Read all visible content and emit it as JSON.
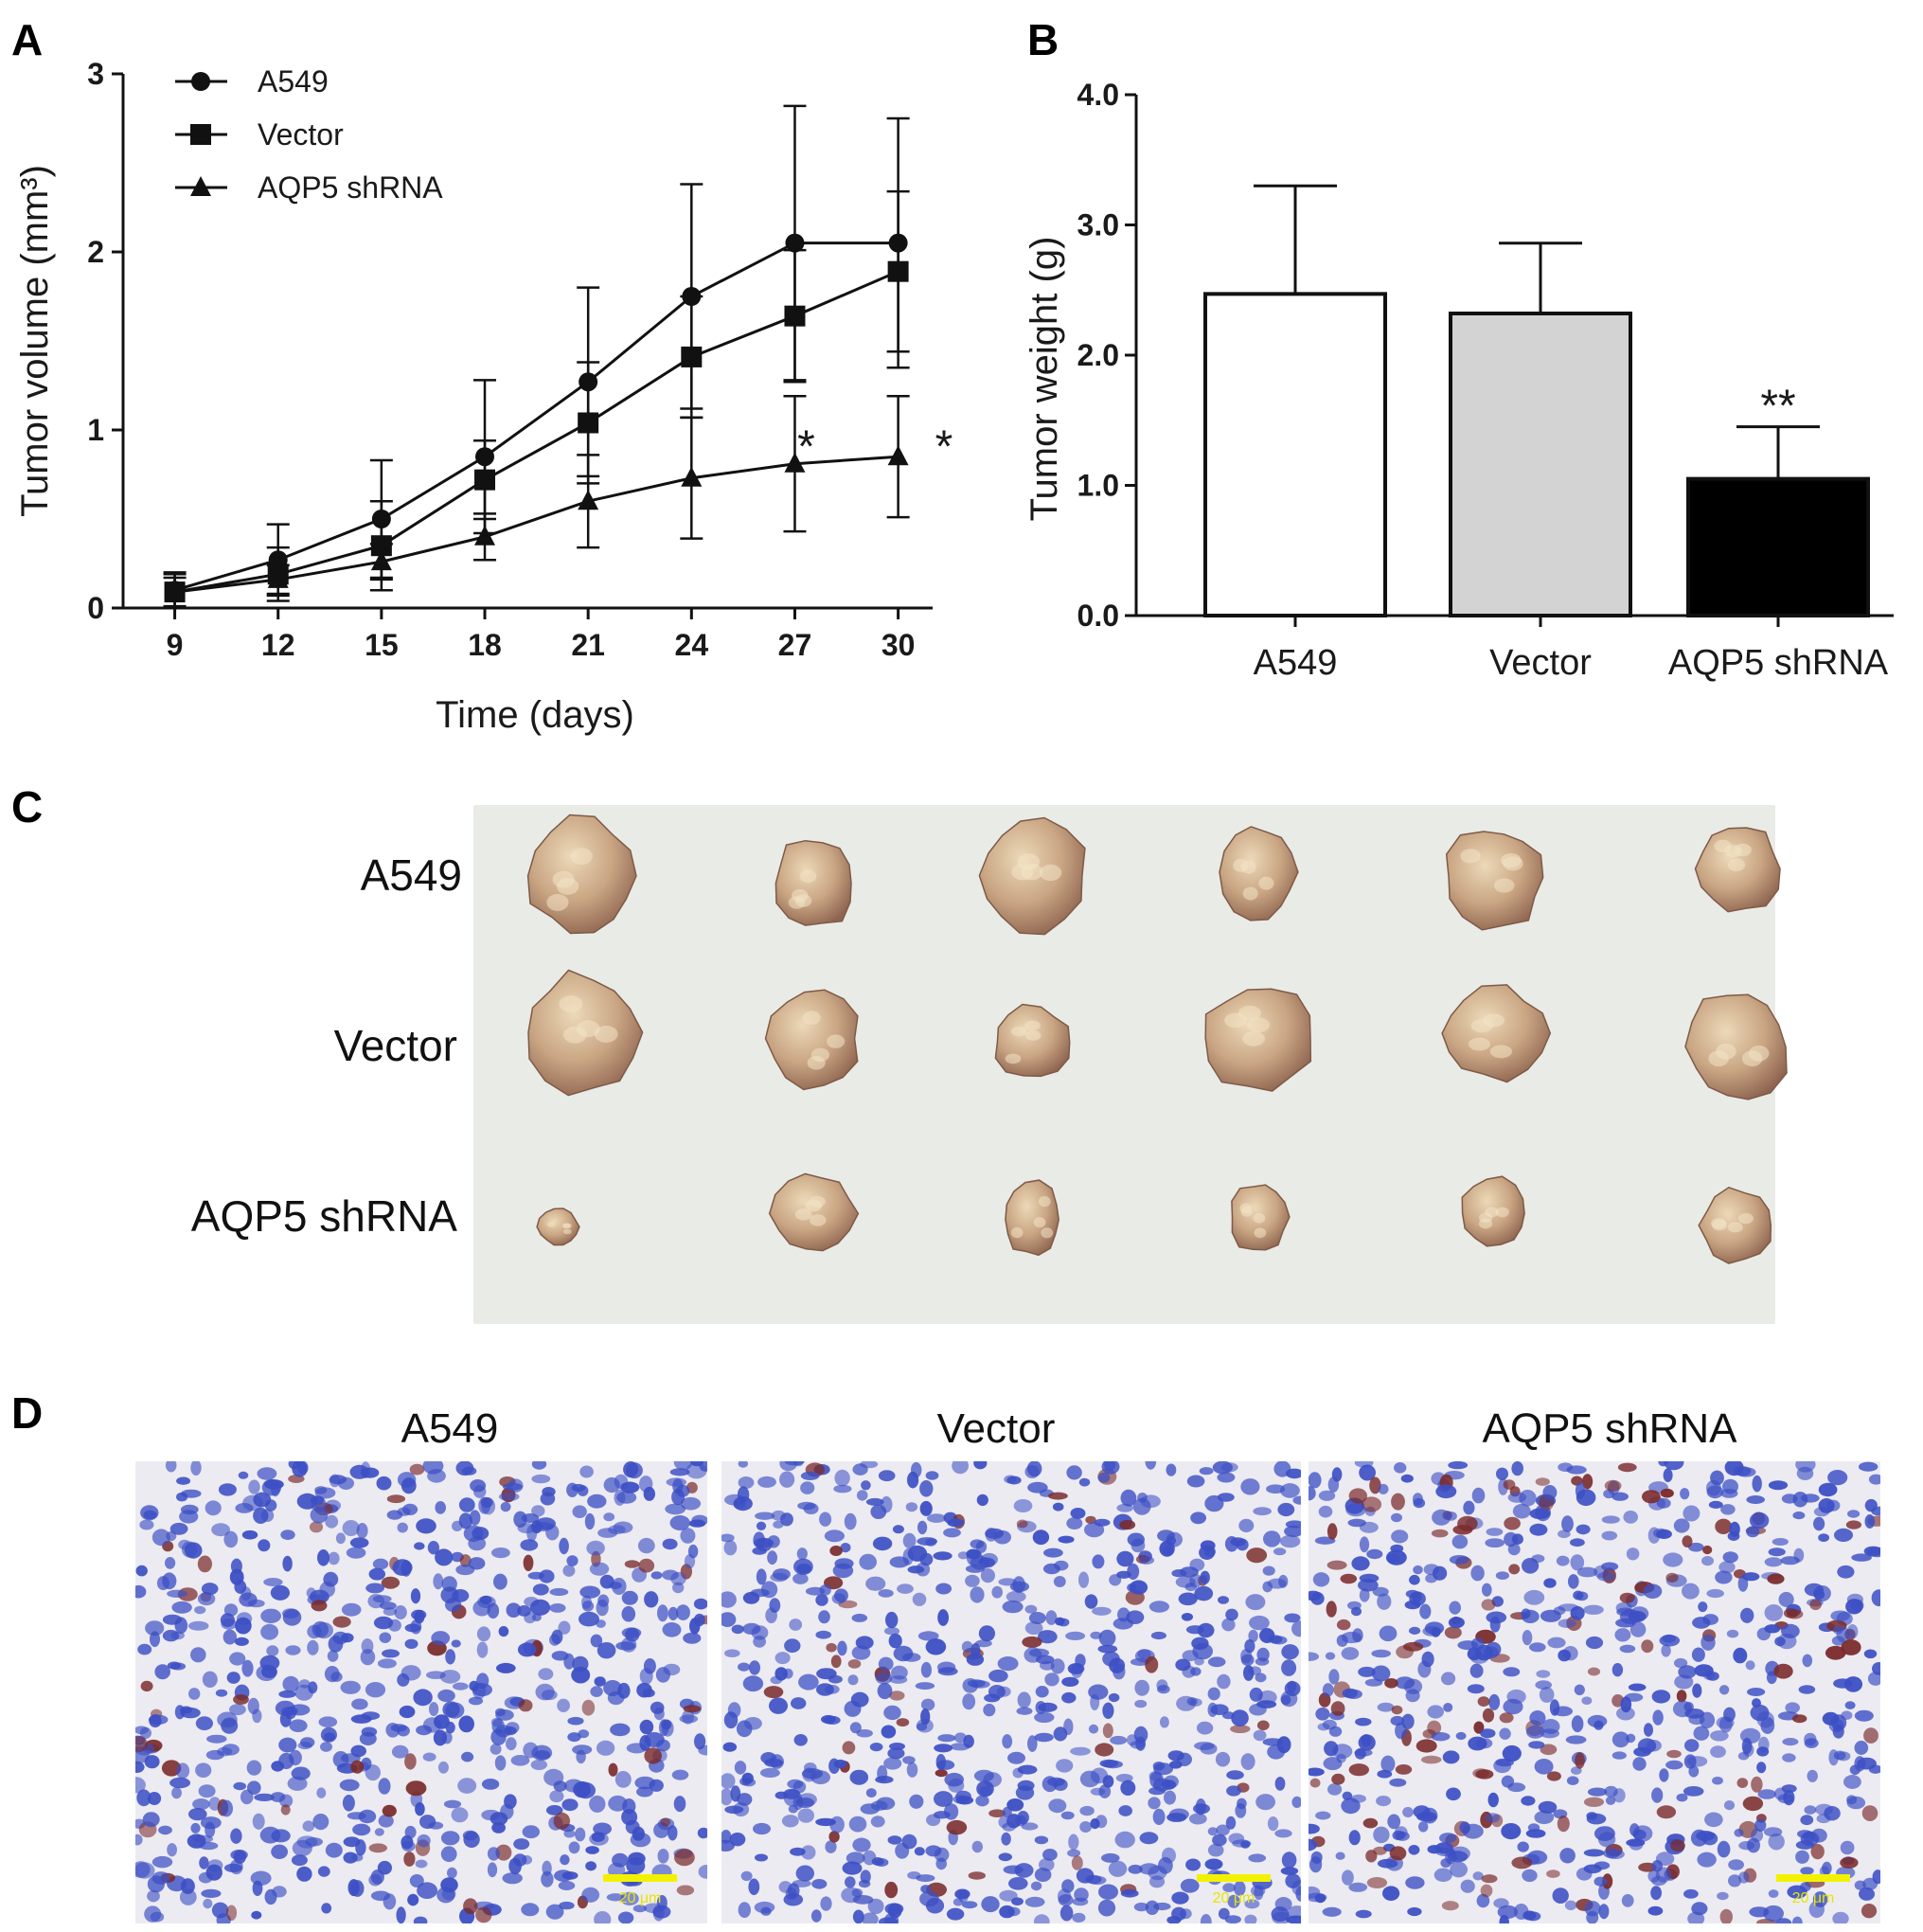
{
  "panels": {
    "a": "A",
    "b": "B",
    "c": "C",
    "d": "D"
  },
  "chart_data": [
    {
      "panel": "A",
      "type": "line",
      "xlabel": "Time (days)",
      "ylabel": "Tumor volume (mm³)",
      "x": [
        9,
        12,
        15,
        18,
        21,
        24,
        27,
        30
      ],
      "xlim": [
        7.5,
        31
      ],
      "ylim": [
        0,
        3
      ],
      "yticks": [
        0,
        1,
        2,
        3
      ],
      "series": [
        {
          "name": "A549",
          "marker": "circle",
          "values": [
            0.1,
            0.27,
            0.5,
            0.85,
            1.27,
            1.75,
            2.05,
            2.05
          ],
          "error": [
            0.1,
            0.2,
            0.33,
            0.43,
            0.53,
            0.63,
            0.77,
            0.7
          ]
        },
        {
          "name": "Vector",
          "marker": "square",
          "values": [
            0.09,
            0.19,
            0.35,
            0.72,
            1.04,
            1.41,
            1.64,
            1.89
          ],
          "error": [
            0.1,
            0.15,
            0.25,
            0.22,
            0.34,
            0.34,
            0.37,
            0.45
          ]
        },
        {
          "name": "AQP5 shRNA",
          "marker": "triangle",
          "values": [
            0.09,
            0.16,
            0.26,
            0.4,
            0.6,
            0.73,
            0.81,
            0.85
          ],
          "error": [
            0.08,
            0.08,
            0.1,
            0.13,
            0.26,
            0.34,
            0.38,
            0.34
          ]
        }
      ],
      "annotations": [
        {
          "x": 27,
          "y": 0.97,
          "text": "*"
        },
        {
          "x": 31,
          "y": 0.97,
          "text": "*"
        }
      ],
      "legend": "top-left"
    },
    {
      "panel": "B",
      "type": "bar",
      "ylabel": "Tumor weight (g)",
      "categories": [
        "A549",
        "Vector",
        "AQP5 shRNA"
      ],
      "values": [
        2.47,
        2.32,
        1.05
      ],
      "error": [
        0.83,
        0.54,
        0.4
      ],
      "colors": [
        "#ffffff",
        "#d3d3d3",
        "#000000"
      ],
      "ylim": [
        0,
        4
      ],
      "yticks": [
        "0.0",
        "1.0",
        "2.0",
        "3.0",
        "4.0"
      ],
      "annotations": [
        {
          "category": "AQP5 shRNA",
          "text": "**"
        }
      ]
    }
  ],
  "photo": {
    "rows": [
      "A549",
      "Vector",
      "AQP5 shRNA"
    ],
    "background": "#e9ebe6"
  },
  "histology": {
    "columns": [
      "A549",
      "Vector",
      "AQP5 shRNA"
    ],
    "scale_label": "20 μm",
    "scale_color": "#f2f200",
    "stain_color": "#3c4fc4",
    "positive_color": "#7a2a2a"
  }
}
